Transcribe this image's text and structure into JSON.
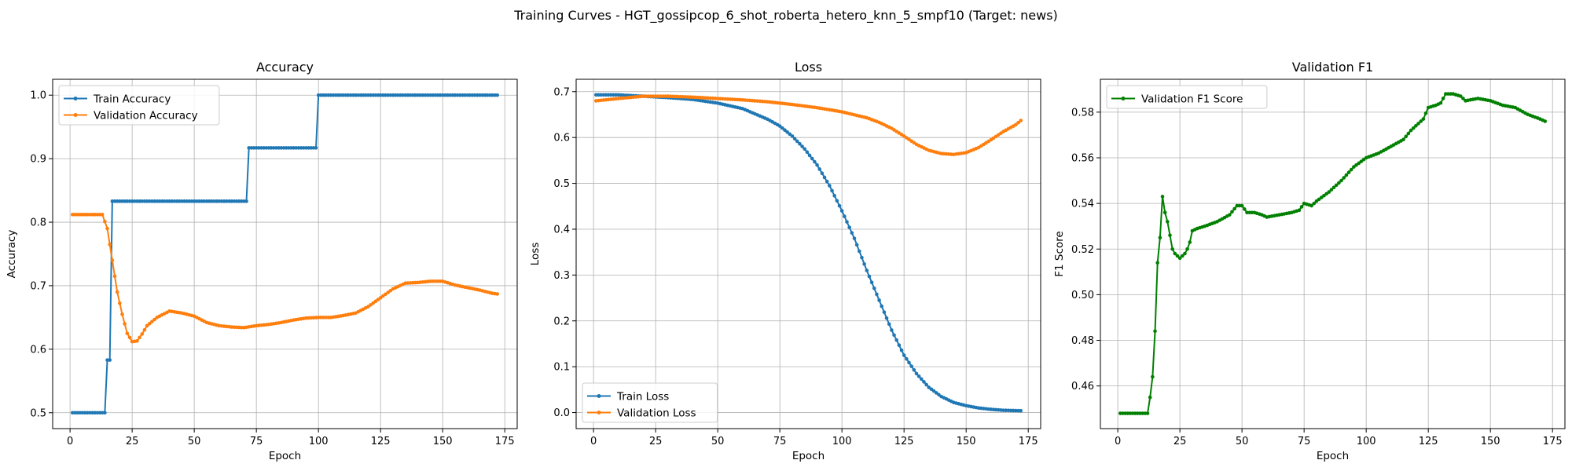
{
  "figure": {
    "title": "Training Curves - HGT_gossipcop_6_shot_roberta_hetero_knn_5_smpf10 (Target: news)"
  },
  "chart_data": [
    {
      "type": "line",
      "title": "Accuracy",
      "xlabel": "Epoch",
      "ylabel": "Accuracy",
      "xlim": [
        -7,
        180
      ],
      "ylim": [
        0.475,
        1.025
      ],
      "xticks": [
        0,
        25,
        50,
        75,
        100,
        125,
        150,
        175
      ],
      "yticks": [
        0.5,
        0.6,
        0.7,
        0.8,
        0.9,
        1.0
      ],
      "ytick_labels": [
        "0.5",
        "0.6",
        "0.7",
        "0.8",
        "0.9",
        "1.0"
      ],
      "grid": true,
      "legend": "top-left",
      "series": [
        {
          "name": "Train Accuracy",
          "color": "#1f77b4",
          "segments": [
            [
              1,
              14,
              0.5
            ],
            [
              15,
              16,
              0.583
            ],
            [
              17,
              71,
              0.833
            ],
            [
              72,
              99,
              0.917
            ],
            [
              100,
              172,
              1.0
            ]
          ]
        },
        {
          "name": "Validation Accuracy",
          "color": "#ff7f0e",
          "knots": [
            [
              1,
              0.812
            ],
            [
              13,
              0.812
            ],
            [
              15,
              0.79
            ],
            [
              17,
              0.74
            ],
            [
              19,
              0.69
            ],
            [
              21,
              0.655
            ],
            [
              23,
              0.625
            ],
            [
              25,
              0.612
            ],
            [
              27,
              0.613
            ],
            [
              29,
              0.624
            ],
            [
              31,
              0.637
            ],
            [
              35,
              0.65
            ],
            [
              40,
              0.66
            ],
            [
              45,
              0.657
            ],
            [
              50,
              0.652
            ],
            [
              55,
              0.642
            ],
            [
              60,
              0.637
            ],
            [
              65,
              0.635
            ],
            [
              70,
              0.634
            ],
            [
              75,
              0.637
            ],
            [
              80,
              0.639
            ],
            [
              85,
              0.642
            ],
            [
              90,
              0.646
            ],
            [
              95,
              0.649
            ],
            [
              100,
              0.65
            ],
            [
              105,
              0.65
            ],
            [
              110,
              0.653
            ],
            [
              115,
              0.657
            ],
            [
              120,
              0.667
            ],
            [
              125,
              0.681
            ],
            [
              130,
              0.695
            ],
            [
              135,
              0.704
            ],
            [
              140,
              0.705
            ],
            [
              145,
              0.707
            ],
            [
              150,
              0.707
            ],
            [
              155,
              0.701
            ],
            [
              160,
              0.697
            ],
            [
              165,
              0.693
            ],
            [
              170,
              0.688
            ],
            [
              172,
              0.687
            ]
          ]
        }
      ]
    },
    {
      "type": "line",
      "title": "Loss",
      "xlabel": "Epoch",
      "ylabel": "Loss",
      "xlim": [
        -7,
        180
      ],
      "ylim": [
        -0.035,
        0.727
      ],
      "xticks": [
        0,
        25,
        50,
        75,
        100,
        125,
        150,
        175
      ],
      "yticks": [
        0.0,
        0.1,
        0.2,
        0.3,
        0.4,
        0.5,
        0.6,
        0.7
      ],
      "ytick_labels": [
        "0.0",
        "0.1",
        "0.2",
        "0.3",
        "0.4",
        "0.5",
        "0.6",
        "0.7"
      ],
      "grid": true,
      "legend": "bottom-left",
      "series": [
        {
          "name": "Train Loss",
          "color": "#1f77b4",
          "knots": [
            [
              1,
              0.693
            ],
            [
              10,
              0.693
            ],
            [
              20,
              0.69
            ],
            [
              30,
              0.687
            ],
            [
              40,
              0.683
            ],
            [
              50,
              0.675
            ],
            [
              60,
              0.663
            ],
            [
              70,
              0.64
            ],
            [
              75,
              0.625
            ],
            [
              80,
              0.603
            ],
            [
              85,
              0.575
            ],
            [
              90,
              0.54
            ],
            [
              95,
              0.495
            ],
            [
              100,
              0.44
            ],
            [
              105,
              0.38
            ],
            [
              110,
              0.31
            ],
            [
              115,
              0.245
            ],
            [
              120,
              0.18
            ],
            [
              125,
              0.125
            ],
            [
              130,
              0.085
            ],
            [
              135,
              0.055
            ],
            [
              140,
              0.035
            ],
            [
              145,
              0.022
            ],
            [
              150,
              0.015
            ],
            [
              155,
              0.01
            ],
            [
              160,
              0.007
            ],
            [
              165,
              0.005
            ],
            [
              172,
              0.004
            ]
          ]
        },
        {
          "name": "Validation Loss",
          "color": "#ff7f0e",
          "knots": [
            [
              1,
              0.68
            ],
            [
              10,
              0.685
            ],
            [
              20,
              0.69
            ],
            [
              30,
              0.69
            ],
            [
              40,
              0.688
            ],
            [
              50,
              0.685
            ],
            [
              60,
              0.682
            ],
            [
              70,
              0.678
            ],
            [
              80,
              0.672
            ],
            [
              90,
              0.665
            ],
            [
              100,
              0.656
            ],
            [
              110,
              0.643
            ],
            [
              115,
              0.633
            ],
            [
              120,
              0.62
            ],
            [
              125,
              0.603
            ],
            [
              130,
              0.585
            ],
            [
              135,
              0.572
            ],
            [
              140,
              0.565
            ],
            [
              145,
              0.563
            ],
            [
              150,
              0.567
            ],
            [
              155,
              0.578
            ],
            [
              160,
              0.595
            ],
            [
              165,
              0.613
            ],
            [
              170,
              0.628
            ],
            [
              172,
              0.637
            ]
          ]
        }
      ]
    },
    {
      "type": "line",
      "title": "Validation F1",
      "xlabel": "Epoch",
      "ylabel": "F1 Score",
      "xlim": [
        -7,
        180
      ],
      "ylim": [
        0.4413,
        0.5944
      ],
      "xticks": [
        0,
        25,
        50,
        75,
        100,
        125,
        150,
        175
      ],
      "yticks": [
        0.46,
        0.48,
        0.5,
        0.52,
        0.54,
        0.56,
        0.58
      ],
      "ytick_labels": [
        "0.46",
        "0.48",
        "0.50",
        "0.52",
        "0.54",
        "0.56",
        "0.58"
      ],
      "grid": true,
      "legend": "top-left",
      "series": [
        {
          "name": "Validation F1 Score",
          "color": "#008000",
          "knots": [
            [
              1,
              0.448
            ],
            [
              12,
              0.448
            ],
            [
              13,
              0.455
            ],
            [
              14,
              0.464
            ],
            [
              15,
              0.484
            ],
            [
              16,
              0.514
            ],
            [
              17,
              0.525
            ],
            [
              18,
              0.543
            ],
            [
              19,
              0.536
            ],
            [
              20,
              0.532
            ],
            [
              21,
              0.526
            ],
            [
              22,
              0.52
            ],
            [
              23,
              0.518
            ],
            [
              24,
              0.517
            ],
            [
              25,
              0.516
            ],
            [
              26,
              0.517
            ],
            [
              27,
              0.518
            ],
            [
              28,
              0.52
            ],
            [
              29,
              0.523
            ],
            [
              30,
              0.528
            ],
            [
              32,
              0.529
            ],
            [
              35,
              0.53
            ],
            [
              40,
              0.532
            ],
            [
              45,
              0.535
            ],
            [
              48,
              0.539
            ],
            [
              50,
              0.539
            ],
            [
              52,
              0.536
            ],
            [
              55,
              0.536
            ],
            [
              58,
              0.535
            ],
            [
              60,
              0.534
            ],
            [
              65,
              0.535
            ],
            [
              70,
              0.536
            ],
            [
              73,
              0.537
            ],
            [
              75,
              0.54
            ],
            [
              78,
              0.539
            ],
            [
              80,
              0.541
            ],
            [
              85,
              0.545
            ],
            [
              90,
              0.55
            ],
            [
              95,
              0.556
            ],
            [
              100,
              0.56
            ],
            [
              105,
              0.562
            ],
            [
              110,
              0.565
            ],
            [
              115,
              0.568
            ],
            [
              118,
              0.572
            ],
            [
              120,
              0.574
            ],
            [
              123,
              0.577
            ],
            [
              125,
              0.582
            ],
            [
              128,
              0.583
            ],
            [
              130,
              0.584
            ],
            [
              132,
              0.588
            ],
            [
              135,
              0.588
            ],
            [
              138,
              0.587
            ],
            [
              140,
              0.585
            ],
            [
              145,
              0.586
            ],
            [
              150,
              0.585
            ],
            [
              155,
              0.583
            ],
            [
              160,
              0.582
            ],
            [
              165,
              0.579
            ],
            [
              170,
              0.577
            ],
            [
              172,
              0.576
            ]
          ]
        }
      ]
    }
  ]
}
